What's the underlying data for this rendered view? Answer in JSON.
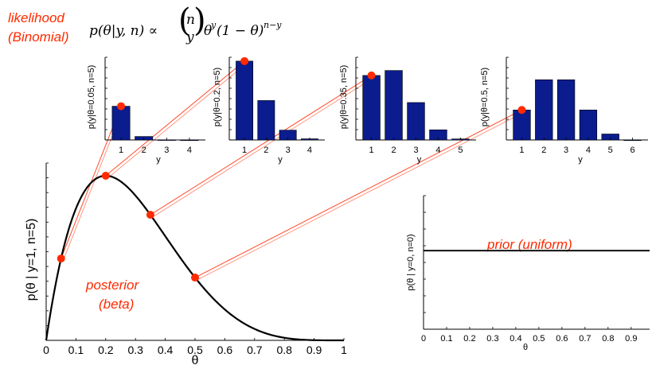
{
  "annotations": {
    "likelihood": "likelihood",
    "binomial": "(Binomial)",
    "posterior": "posterior",
    "beta": "(beta)",
    "prior": "prior (uniform)"
  },
  "formula": {
    "lhs": "p(θ|y, n) ∝",
    "binom_top": "n",
    "binom_bottom": "y",
    "rhs": "θ",
    "rhs_exp": "y",
    "rhs2": "(1 − θ)",
    "rhs2_exp": "n−y"
  },
  "colors": {
    "bar": "#0a1c8e",
    "curve": "#000000",
    "highlight": "#ff2a00"
  },
  "chart_data": [
    {
      "type": "bar",
      "xlabel": "y",
      "ylabel": "p(y|θ=0.05, n=5)",
      "categories": [
        "1",
        "2",
        "3",
        "4"
      ],
      "values": [
        0.204,
        0.021,
        0.001,
        0.0
      ],
      "ylim": [
        0,
        0.5
      ],
      "highlight": "1"
    },
    {
      "type": "bar",
      "xlabel": "y",
      "ylabel": "p(y|θ=0.2, n=5)",
      "categories": [
        "1",
        "2",
        "3",
        "4"
      ],
      "values": [
        0.41,
        0.205,
        0.051,
        0.006
      ],
      "ylim": [
        0,
        0.43
      ],
      "highlight": "1"
    },
    {
      "type": "bar",
      "xlabel": "y",
      "ylabel": "p(y|θ=0.35, n=5)",
      "categories": [
        "1",
        "2",
        "3",
        "4",
        "5"
      ],
      "values": [
        0.312,
        0.336,
        0.181,
        0.049,
        0.005
      ],
      "ylim": [
        0,
        0.4
      ],
      "highlight": "1"
    },
    {
      "type": "bar",
      "xlabel": "y",
      "ylabel": "p(y|θ=0.5, n=5)",
      "categories": [
        "1",
        "2",
        "3",
        "4",
        "5",
        "6"
      ],
      "values": [
        0.156,
        0.313,
        0.313,
        0.156,
        0.031,
        0.0
      ],
      "ylim": [
        0,
        0.43
      ],
      "highlight": "1"
    },
    {
      "type": "line",
      "xlabel": "θ",
      "ylabel": "p(θ | y=1, n=5)",
      "x_ticks": [
        "0",
        "0.1",
        "0.2",
        "0.3",
        "0.4",
        "0.5",
        "0.6",
        "0.7",
        "0.8",
        "0.9",
        "1"
      ],
      "xlim": [
        0,
        1
      ],
      "ylim": [
        0,
        2.65
      ],
      "curve": "6·θ·(1−θ)^4 · 6/2.4576 scaling (Beta(2,5) shape)",
      "highlight_points": [
        {
          "x": 0.05,
          "y": 1.24
        },
        {
          "x": 0.2,
          "y": 2.46
        },
        {
          "x": 0.35,
          "y": 1.87
        },
        {
          "x": 0.5,
          "y": 0.94
        }
      ]
    },
    {
      "type": "line",
      "xlabel": "θ",
      "ylabel": "p(θ | y=0, n=0)",
      "x_ticks": [
        "0",
        "0.1",
        "0.2",
        "0.3",
        "0.4",
        "0.5",
        "0.6",
        "0.7",
        "0.8",
        "0.9"
      ],
      "xlim": [
        0,
        0.98
      ],
      "ylim": [
        0,
        1.7
      ],
      "value": 1
    }
  ]
}
